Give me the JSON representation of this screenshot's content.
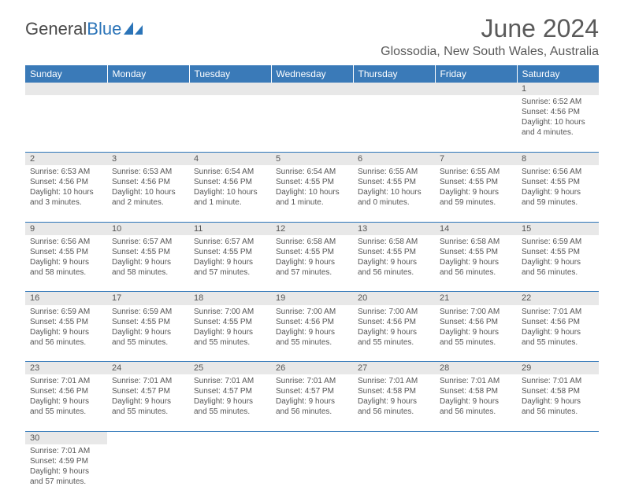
{
  "brand": {
    "part1": "General",
    "part2": "Blue"
  },
  "title": "June 2024",
  "location": "Glossodia, New South Wales, Australia",
  "colors": {
    "header_bg": "#3a7ab8",
    "daynum_bg": "#e8e8e8",
    "border": "#2b74b8",
    "text": "#555555"
  },
  "day_headers": [
    "Sunday",
    "Monday",
    "Tuesday",
    "Wednesday",
    "Thursday",
    "Friday",
    "Saturday"
  ],
  "weeks": [
    [
      null,
      null,
      null,
      null,
      null,
      null,
      {
        "n": "1",
        "sr": "Sunrise: 6:52 AM",
        "ss": "Sunset: 4:56 PM",
        "dl": "Daylight: 10 hours and 4 minutes."
      }
    ],
    [
      {
        "n": "2",
        "sr": "Sunrise: 6:53 AM",
        "ss": "Sunset: 4:56 PM",
        "dl": "Daylight: 10 hours and 3 minutes."
      },
      {
        "n": "3",
        "sr": "Sunrise: 6:53 AM",
        "ss": "Sunset: 4:56 PM",
        "dl": "Daylight: 10 hours and 2 minutes."
      },
      {
        "n": "4",
        "sr": "Sunrise: 6:54 AM",
        "ss": "Sunset: 4:56 PM",
        "dl": "Daylight: 10 hours and 1 minute."
      },
      {
        "n": "5",
        "sr": "Sunrise: 6:54 AM",
        "ss": "Sunset: 4:55 PM",
        "dl": "Daylight: 10 hours and 1 minute."
      },
      {
        "n": "6",
        "sr": "Sunrise: 6:55 AM",
        "ss": "Sunset: 4:55 PM",
        "dl": "Daylight: 10 hours and 0 minutes."
      },
      {
        "n": "7",
        "sr": "Sunrise: 6:55 AM",
        "ss": "Sunset: 4:55 PM",
        "dl": "Daylight: 9 hours and 59 minutes."
      },
      {
        "n": "8",
        "sr": "Sunrise: 6:56 AM",
        "ss": "Sunset: 4:55 PM",
        "dl": "Daylight: 9 hours and 59 minutes."
      }
    ],
    [
      {
        "n": "9",
        "sr": "Sunrise: 6:56 AM",
        "ss": "Sunset: 4:55 PM",
        "dl": "Daylight: 9 hours and 58 minutes."
      },
      {
        "n": "10",
        "sr": "Sunrise: 6:57 AM",
        "ss": "Sunset: 4:55 PM",
        "dl": "Daylight: 9 hours and 58 minutes."
      },
      {
        "n": "11",
        "sr": "Sunrise: 6:57 AM",
        "ss": "Sunset: 4:55 PM",
        "dl": "Daylight: 9 hours and 57 minutes."
      },
      {
        "n": "12",
        "sr": "Sunrise: 6:58 AM",
        "ss": "Sunset: 4:55 PM",
        "dl": "Daylight: 9 hours and 57 minutes."
      },
      {
        "n": "13",
        "sr": "Sunrise: 6:58 AM",
        "ss": "Sunset: 4:55 PM",
        "dl": "Daylight: 9 hours and 56 minutes."
      },
      {
        "n": "14",
        "sr": "Sunrise: 6:58 AM",
        "ss": "Sunset: 4:55 PM",
        "dl": "Daylight: 9 hours and 56 minutes."
      },
      {
        "n": "15",
        "sr": "Sunrise: 6:59 AM",
        "ss": "Sunset: 4:55 PM",
        "dl": "Daylight: 9 hours and 56 minutes."
      }
    ],
    [
      {
        "n": "16",
        "sr": "Sunrise: 6:59 AM",
        "ss": "Sunset: 4:55 PM",
        "dl": "Daylight: 9 hours and 56 minutes."
      },
      {
        "n": "17",
        "sr": "Sunrise: 6:59 AM",
        "ss": "Sunset: 4:55 PM",
        "dl": "Daylight: 9 hours and 55 minutes."
      },
      {
        "n": "18",
        "sr": "Sunrise: 7:00 AM",
        "ss": "Sunset: 4:55 PM",
        "dl": "Daylight: 9 hours and 55 minutes."
      },
      {
        "n": "19",
        "sr": "Sunrise: 7:00 AM",
        "ss": "Sunset: 4:56 PM",
        "dl": "Daylight: 9 hours and 55 minutes."
      },
      {
        "n": "20",
        "sr": "Sunrise: 7:00 AM",
        "ss": "Sunset: 4:56 PM",
        "dl": "Daylight: 9 hours and 55 minutes."
      },
      {
        "n": "21",
        "sr": "Sunrise: 7:00 AM",
        "ss": "Sunset: 4:56 PM",
        "dl": "Daylight: 9 hours and 55 minutes."
      },
      {
        "n": "22",
        "sr": "Sunrise: 7:01 AM",
        "ss": "Sunset: 4:56 PM",
        "dl": "Daylight: 9 hours and 55 minutes."
      }
    ],
    [
      {
        "n": "23",
        "sr": "Sunrise: 7:01 AM",
        "ss": "Sunset: 4:56 PM",
        "dl": "Daylight: 9 hours and 55 minutes."
      },
      {
        "n": "24",
        "sr": "Sunrise: 7:01 AM",
        "ss": "Sunset: 4:57 PM",
        "dl": "Daylight: 9 hours and 55 minutes."
      },
      {
        "n": "25",
        "sr": "Sunrise: 7:01 AM",
        "ss": "Sunset: 4:57 PM",
        "dl": "Daylight: 9 hours and 55 minutes."
      },
      {
        "n": "26",
        "sr": "Sunrise: 7:01 AM",
        "ss": "Sunset: 4:57 PM",
        "dl": "Daylight: 9 hours and 56 minutes."
      },
      {
        "n": "27",
        "sr": "Sunrise: 7:01 AM",
        "ss": "Sunset: 4:58 PM",
        "dl": "Daylight: 9 hours and 56 minutes."
      },
      {
        "n": "28",
        "sr": "Sunrise: 7:01 AM",
        "ss": "Sunset: 4:58 PM",
        "dl": "Daylight: 9 hours and 56 minutes."
      },
      {
        "n": "29",
        "sr": "Sunrise: 7:01 AM",
        "ss": "Sunset: 4:58 PM",
        "dl": "Daylight: 9 hours and 56 minutes."
      }
    ],
    [
      {
        "n": "30",
        "sr": "Sunrise: 7:01 AM",
        "ss": "Sunset: 4:59 PM",
        "dl": "Daylight: 9 hours and 57 minutes."
      },
      null,
      null,
      null,
      null,
      null,
      null
    ]
  ]
}
